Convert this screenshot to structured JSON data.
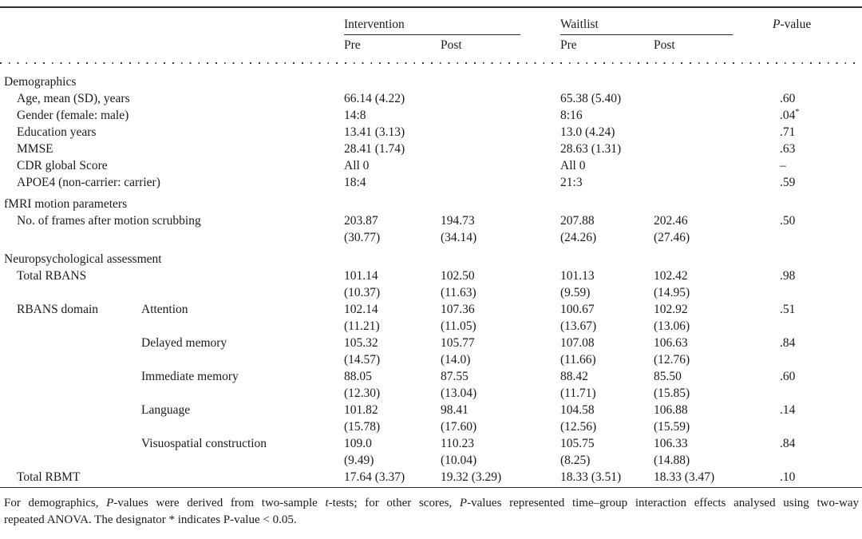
{
  "table": {
    "groups": [
      {
        "label": "Intervention",
        "subcols": [
          "Pre",
          "Post"
        ]
      },
      {
        "label": "Waitlist",
        "subcols": [
          "Pre",
          "Post"
        ]
      }
    ],
    "pvalue_header": {
      "italic": "P",
      "rest": "-value"
    },
    "rows": [
      {
        "type": "section",
        "label": "Demographics"
      },
      {
        "type": "data",
        "label": "Age, mean (SD), years",
        "i_pre": "66.14 (4.22)",
        "w_pre": "65.38 (5.40)",
        "p": ".60"
      },
      {
        "type": "data",
        "label": "Gender (female: male)",
        "i_pre": "14:8",
        "w_pre": "8:16",
        "p": ".04",
        "p_sup": "*"
      },
      {
        "type": "data",
        "label": "Education years",
        "i_pre": "13.41 (3.13)",
        "w_pre": "13.0 (4.24)",
        "p": ".71"
      },
      {
        "type": "data",
        "label": "MMSE",
        "i_pre": "28.41 (1.74)",
        "w_pre": "28.63 (1.31)",
        "p": ".63"
      },
      {
        "type": "data",
        "label": "CDR global Score",
        "i_pre": "All 0",
        "w_pre": "All 0",
        "p": "–"
      },
      {
        "type": "data",
        "label": "APOE4 (non-carrier: carrier)",
        "i_pre": "18:4",
        "w_pre": "21:3",
        "p": ".59"
      },
      {
        "type": "section",
        "label": "fMRI motion parameters"
      },
      {
        "type": "data",
        "label": "No. of frames after motion scrubbing",
        "i_pre": "203.87",
        "i_pre_sd": "(30.77)",
        "i_post": "194.73",
        "i_post_sd": "(34.14)",
        "w_pre": "207.88",
        "w_pre_sd": "(24.26)",
        "w_post": "202.46",
        "w_post_sd": "(27.46)",
        "p": ".50"
      },
      {
        "type": "section",
        "label": "Neuropsychological assessment"
      },
      {
        "type": "data",
        "label": "Total RBANS",
        "i_pre": "101.14",
        "i_pre_sd": "(10.37)",
        "i_post": "102.50",
        "i_post_sd": "(11.63)",
        "w_pre": "101.13",
        "w_pre_sd": "(9.59)",
        "w_post": "102.42",
        "w_post_sd": "(14.95)",
        "p": ".98"
      },
      {
        "type": "data",
        "label": "RBANS domain",
        "label2": "Attention",
        "i_pre": "102.14",
        "i_pre_sd": "(11.21)",
        "i_post": "107.36",
        "i_post_sd": "(11.05)",
        "w_pre": "100.67",
        "w_pre_sd": "(13.67)",
        "w_post": "102.92",
        "w_post_sd": "(13.06)",
        "p": ".51"
      },
      {
        "type": "data",
        "label": "",
        "label2": "Delayed memory",
        "i_pre": "105.32",
        "i_pre_sd": "(14.57)",
        "i_post": "105.77",
        "i_post_sd": "(14.0)",
        "w_pre": "107.08",
        "w_pre_sd": "(11.66)",
        "w_post": "106.63",
        "w_post_sd": "(12.76)",
        "p": ".84"
      },
      {
        "type": "data",
        "label": "",
        "label2": "Immediate memory",
        "i_pre": "88.05",
        "i_pre_sd": "(12.30)",
        "i_post": "87.55",
        "i_post_sd": "(13.04)",
        "w_pre": "88.42",
        "w_pre_sd": "(11.71)",
        "w_post": "85.50",
        "w_post_sd": "(15.85)",
        "p": ".60"
      },
      {
        "type": "data",
        "label": "",
        "label2": "Language",
        "i_pre": "101.82",
        "i_pre_sd": "(15.78)",
        "i_post": "98.41",
        "i_post_sd": "(17.60)",
        "w_pre": "104.58",
        "w_pre_sd": "(12.56)",
        "w_post": "106.88",
        "w_post_sd": "(15.59)",
        "p": ".14"
      },
      {
        "type": "data",
        "label": "",
        "label2": "Visuospatial construction",
        "i_pre": "109.0",
        "i_pre_sd": "(9.49)",
        "i_post": "110.23",
        "i_post_sd": "(10.04)",
        "w_pre": "105.75",
        "w_pre_sd": "(8.25)",
        "w_post": "106.33",
        "w_post_sd": "(14.88)",
        "p": ".84"
      },
      {
        "type": "data",
        "label": "Total RBMT",
        "i_pre": "17.64 (3.37)",
        "i_post": "19.32 (3.29)",
        "w_pre": "18.33 (3.51)",
        "w_post": "18.33 (3.47)",
        "p": ".10"
      }
    ]
  },
  "footnote": {
    "line1_parts": [
      {
        "text": "For demographics, "
      },
      {
        "text": "P",
        "italic": true
      },
      {
        "text": "-values were derived from two-sample "
      },
      {
        "text": "t",
        "italic": true
      },
      {
        "text": "-tests; for other scores, "
      },
      {
        "text": "P",
        "italic": true
      },
      {
        "text": "-values represented time–group interaction effects analysed using two-way"
      }
    ],
    "line2": "repeated ANOVA. The designator * indicates P-value < 0.05."
  }
}
